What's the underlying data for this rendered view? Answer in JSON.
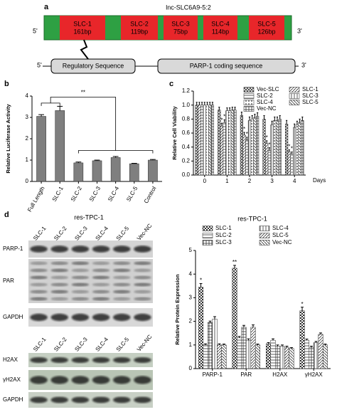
{
  "panel_labels": [
    "a",
    "b",
    "c",
    "d"
  ],
  "diagram": {
    "title": "lnc-SLC6A9-5:2",
    "five_prime": "5'",
    "three_prime": "3'",
    "segments": [
      {
        "name": "SLC-1",
        "length": "161bp"
      },
      {
        "name": "SLC-2",
        "length": "119bp"
      },
      {
        "name": "SLC-3",
        "length": "75bp"
      },
      {
        "name": "SLC-4",
        "length": "114bp"
      },
      {
        "name": "SLC-5",
        "length": "126bp"
      }
    ],
    "regulatory": "Regulatory Sequence",
    "coding": "PARP-1 coding sequence"
  },
  "blot": {
    "title": "res-TPC-1",
    "groups": [
      {
        "lanes": [
          "SLC-1",
          "SLC-2",
          "SLC-3",
          "SLC-4",
          "SLC-5",
          "Vec-NC"
        ],
        "rows": [
          "PARP-1",
          "PAR",
          "GAPDH"
        ]
      },
      {
        "lanes": [
          "SLC-1",
          "SLC-2",
          "SLC-3",
          "SLC-4",
          "SLC-5",
          "Vec-NC"
        ],
        "rows": [
          "H2AX",
          "γH2AX",
          "GAPDH"
        ]
      }
    ]
  },
  "chart_data": [
    {
      "type": "bar",
      "ylabel": "Relative Luciferase Activity",
      "categories": [
        "Full Length",
        "SLC-1",
        "SLC-2",
        "SLC-3",
        "SLC-4",
        "SLC-5",
        "Control"
      ],
      "values": [
        3.05,
        3.32,
        0.87,
        0.97,
        1.12,
        0.83,
        1.0
      ],
      "errors": [
        0.08,
        0.2,
        0.04,
        0.03,
        0.05,
        0.02,
        0.03
      ],
      "color": "#7f7f7f",
      "significance": "**",
      "ylim": [
        0,
        4
      ],
      "yticks": [
        0,
        1,
        2,
        3,
        4
      ]
    },
    {
      "type": "bar",
      "ylabel": "Relative Cell Viability",
      "xlabel": "Days",
      "categories": [
        "0",
        "1",
        "2",
        "3",
        "4"
      ],
      "series": [
        {
          "name": "Vec-SLC",
          "color": "#333333",
          "pattern": "cross",
          "values": [
            1.0,
            0.93,
            0.85,
            0.8,
            0.73
          ],
          "errors": [
            0.04,
            0.04,
            0.05,
            0.05,
            0.05
          ]
        },
        {
          "name": "SLC-1",
          "color": "#333333",
          "pattern": "hatch",
          "values": [
            1.0,
            0.7,
            0.57,
            0.45,
            0.33
          ],
          "errors": [
            0.04,
            0.04,
            0.04,
            0.04,
            0.03
          ],
          "significance": [
            null,
            "*",
            "*",
            "*",
            "*"
          ]
        },
        {
          "name": "SLC-2",
          "color": "#333333",
          "pattern": "hlines",
          "values": [
            1.0,
            0.75,
            0.5,
            0.35,
            0.3
          ],
          "errors": [
            0.04,
            0.04,
            0.04,
            0.04,
            0.03
          ],
          "significance": [
            null,
            "*",
            "*",
            "*",
            "*"
          ]
        },
        {
          "name": "SLC-3",
          "color": "#333333",
          "pattern": "vlines",
          "values": [
            1.0,
            0.92,
            0.78,
            0.72,
            0.68
          ],
          "errors": [
            0.04,
            0.04,
            0.05,
            0.05,
            0.05
          ]
        },
        {
          "name": "SLC-4",
          "color": "#333333",
          "pattern": "dots",
          "values": [
            1.0,
            0.92,
            0.8,
            0.78,
            0.72
          ],
          "errors": [
            0.04,
            0.04,
            0.05,
            0.05,
            0.05
          ]
        },
        {
          "name": "SLC-5",
          "color": "#333333",
          "pattern": "back-hatch",
          "values": [
            1.0,
            0.93,
            0.82,
            0.78,
            0.75
          ],
          "errors": [
            0.04,
            0.04,
            0.05,
            0.05,
            0.05
          ]
        },
        {
          "name": "Vec-NC",
          "color": "#333333",
          "pattern": "grid",
          "values": [
            1.0,
            0.93,
            0.84,
            0.8,
            0.78
          ],
          "errors": [
            0.04,
            0.04,
            0.05,
            0.05,
            0.05
          ]
        }
      ],
      "ylim": [
        0,
        1.2
      ],
      "yticks": [
        {
          "value": 0,
          "label": "0.0"
        },
        0.2,
        0.4,
        0.6,
        0.8,
        {
          "value": 1,
          "label": "1.0"
        },
        1.2
      ]
    },
    {
      "type": "bar",
      "title": "res-TPC-1",
      "ylabel": "Relative Protein Expression",
      "categories": [
        "PARP-1",
        "PAR",
        "H2AX",
        "γH2AX"
      ],
      "series": [
        {
          "name": "SLC-1",
          "color": "#333333",
          "pattern": "checker",
          "values": [
            3.45,
            4.25,
            1.05,
            2.45
          ],
          "errors": [
            0.15,
            0.12,
            0.05,
            0.15
          ],
          "significance": [
            "*",
            "**",
            null,
            "*"
          ]
        },
        {
          "name": "SLC-2",
          "color": "#333333",
          "pattern": "hlines",
          "values": [
            1.0,
            1.3,
            1.2,
            1.2
          ],
          "errors": [
            0.05,
            0.06,
            0.06,
            0.05
          ]
        },
        {
          "name": "SLC-3",
          "color": "#333333",
          "pattern": "grid",
          "values": [
            1.95,
            1.75,
            0.95,
            0.9
          ],
          "errors": [
            0.06,
            0.08,
            0.05,
            0.05
          ]
        },
        {
          "name": "SLC-4",
          "color": "#333333",
          "pattern": "vlines",
          "values": [
            2.1,
            1.2,
            0.95,
            1.1
          ],
          "errors": [
            0.1,
            0.06,
            0.05,
            0.05
          ]
        },
        {
          "name": "SLC-5",
          "color": "#333333",
          "pattern": "hatch",
          "values": [
            1.0,
            1.75,
            0.9,
            1.45
          ],
          "errors": [
            0.05,
            0.1,
            0.05,
            0.06
          ]
        },
        {
          "name": "Vec-NC",
          "color": "#333333",
          "pattern": "back-hatch",
          "values": [
            1.0,
            1.0,
            0.85,
            1.0
          ],
          "errors": [
            0.04,
            0.04,
            0.04,
            0.04
          ]
        }
      ],
      "ylim": [
        0,
        5
      ],
      "yticks": [
        0,
        1,
        2,
        3,
        4,
        5
      ]
    }
  ]
}
